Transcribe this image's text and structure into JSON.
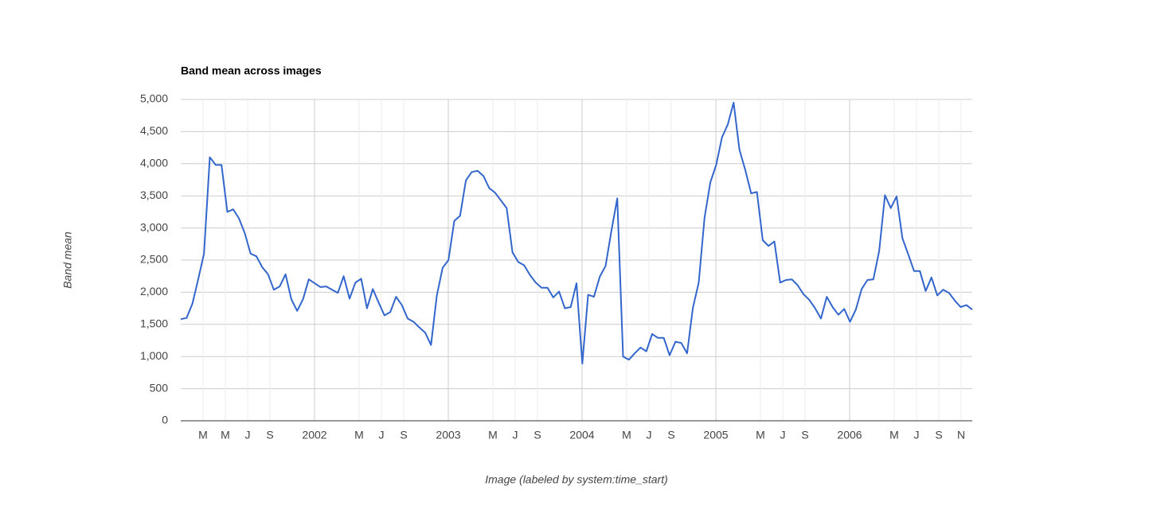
{
  "chart_data": {
    "type": "line",
    "title": "Band mean across images",
    "y_label": "Band mean",
    "x_label": "Image (labeled by system:time_start)",
    "color": "#3366cc",
    "xlim": [
      "2001-01",
      "2006-12"
    ],
    "xticks": [
      {
        "value": "2001-03",
        "label": "M"
      },
      {
        "value": "2001-05",
        "label": "M"
      },
      {
        "value": "2001-07",
        "label": "J"
      },
      {
        "value": "2001-09",
        "label": "S"
      },
      {
        "value": "2002-01",
        "label": "2002"
      },
      {
        "value": "2002-05",
        "label": "M"
      },
      {
        "value": "2002-07",
        "label": "J"
      },
      {
        "value": "2002-09",
        "label": "S"
      },
      {
        "value": "2003-01",
        "label": "2003"
      },
      {
        "value": "2003-05",
        "label": "M"
      },
      {
        "value": "2003-07",
        "label": "J"
      },
      {
        "value": "2003-09",
        "label": "S"
      },
      {
        "value": "2004-01",
        "label": "2004"
      },
      {
        "value": "2004-05",
        "label": "M"
      },
      {
        "value": "2004-07",
        "label": "J"
      },
      {
        "value": "2004-09",
        "label": "S"
      },
      {
        "value": "2005-01",
        "label": "2005"
      },
      {
        "value": "2005-05",
        "label": "M"
      },
      {
        "value": "2005-07",
        "label": "J"
      },
      {
        "value": "2005-09",
        "label": "S"
      },
      {
        "value": "2006-01",
        "label": "2006"
      },
      {
        "value": "2006-05",
        "label": "M"
      },
      {
        "value": "2006-07",
        "label": "J"
      },
      {
        "value": "2006-09",
        "label": "S"
      },
      {
        "value": "2006-11",
        "label": "N"
      }
    ],
    "ylim": [
      0,
      5000
    ],
    "yticks": [
      {
        "value": 0,
        "label": "0"
      },
      {
        "value": 500,
        "label": "500"
      },
      {
        "value": 1000,
        "label": "1,000"
      },
      {
        "value": 1500,
        "label": "1,500"
      },
      {
        "value": 2000,
        "label": "2,000"
      },
      {
        "value": 2500,
        "label": "2,500"
      },
      {
        "value": 3000,
        "label": "3,000"
      },
      {
        "value": 3500,
        "label": "3,500"
      },
      {
        "value": 4000,
        "label": "4,000"
      },
      {
        "value": 4500,
        "label": "4,500"
      },
      {
        "value": 5000,
        "label": "5,000"
      }
    ],
    "grid": true,
    "values": [
      1580,
      1600,
      1820,
      2200,
      2600,
      4100,
      3980,
      3980,
      3250,
      3290,
      3150,
      2920,
      2600,
      2560,
      2390,
      2280,
      2040,
      2090,
      2280,
      1890,
      1710,
      1890,
      2200,
      2140,
      2080,
      2090,
      2040,
      1990,
      2250,
      1900,
      2150,
      2210,
      1750,
      2050,
      1840,
      1640,
      1690,
      1930,
      1800,
      1590,
      1540,
      1450,
      1370,
      1180,
      1950,
      2380,
      2500,
      3110,
      3190,
      3740,
      3870,
      3890,
      3810,
      3620,
      3550,
      3430,
      3310,
      2620,
      2470,
      2420,
      2270,
      2150,
      2070,
      2070,
      1920,
      2010,
      1750,
      1770,
      2140,
      890,
      1960,
      1930,
      2240,
      2410,
      2960,
      3460,
      1000,
      950,
      1050,
      1140,
      1080,
      1350,
      1290,
      1290,
      1020,
      1230,
      1210,
      1050,
      1760,
      2150,
      3160,
      3710,
      3980,
      4410,
      4610,
      4950,
      4220,
      3900,
      3540,
      3560,
      2810,
      2720,
      2790,
      2150,
      2190,
      2200,
      2110,
      1970,
      1880,
      1750,
      1590,
      1930,
      1770,
      1650,
      1740,
      1540,
      1730,
      2050,
      2190,
      2200,
      2640,
      3510,
      3310,
      3490,
      2840,
      2590,
      2330,
      2330,
      2020,
      2230,
      1950,
      2040,
      1990,
      1870,
      1770,
      1800,
      1730
    ]
  }
}
